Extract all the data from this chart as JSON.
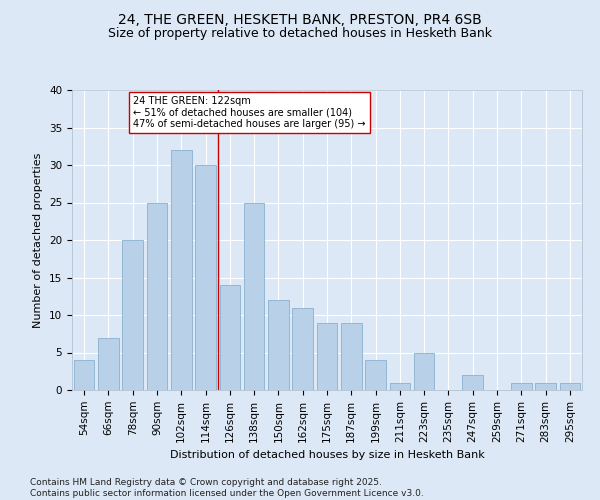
{
  "title1": "24, THE GREEN, HESKETH BANK, PRESTON, PR4 6SB",
  "title2": "Size of property relative to detached houses in Hesketh Bank",
  "xlabel": "Distribution of detached houses by size in Hesketh Bank",
  "ylabel": "Number of detached properties",
  "categories": [
    "54sqm",
    "66sqm",
    "78sqm",
    "90sqm",
    "102sqm",
    "114sqm",
    "126sqm",
    "138sqm",
    "150sqm",
    "162sqm",
    "175sqm",
    "187sqm",
    "199sqm",
    "211sqm",
    "223sqm",
    "235sqm",
    "247sqm",
    "259sqm",
    "271sqm",
    "283sqm",
    "295sqm"
  ],
  "values": [
    4,
    7,
    20,
    25,
    32,
    30,
    14,
    25,
    12,
    11,
    9,
    9,
    4,
    1,
    5,
    0,
    2,
    0,
    1,
    1,
    1
  ],
  "bar_color": "#b8d0e8",
  "bar_edge_color": "#8ab0d0",
  "vline_x": 5.5,
  "vline_color": "#cc0000",
  "annotation_text": "24 THE GREEN: 122sqm\n← 51% of detached houses are smaller (104)\n47% of semi-detached houses are larger (95) →",
  "annotation_box_facecolor": "#ffffff",
  "annotation_box_edgecolor": "#cc0000",
  "ylim": [
    0,
    40
  ],
  "yticks": [
    0,
    5,
    10,
    15,
    20,
    25,
    30,
    35,
    40
  ],
  "background_color": "#dce8f5",
  "fig_background": "#dce8f5",
  "footer": "Contains HM Land Registry data © Crown copyright and database right 2025.\nContains public sector information licensed under the Open Government Licence v3.0.",
  "title_fontsize": 10,
  "subtitle_fontsize": 9,
  "axis_label_fontsize": 8,
  "tick_fontsize": 7.5,
  "footer_fontsize": 6.5,
  "annotation_fontsize": 7
}
